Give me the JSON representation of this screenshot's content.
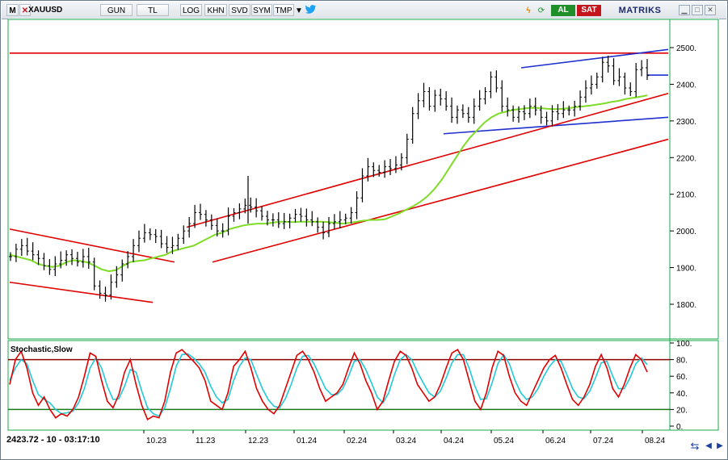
{
  "toolbar": {
    "menu_icon_label": "M",
    "symbol": "XAUUSD",
    "period": "GUN",
    "currency": "TL",
    "log": "LOG",
    "khn": "KHN",
    "svd": "SVD",
    "sym": "SYM",
    "tmp": "TMP",
    "buy_label": "AL",
    "sell_label": "SAT",
    "brand": "MATRIKS"
  },
  "colors": {
    "price_bar": "#000000",
    "moving_average": "#7fdc26",
    "trend_red": "#e00000",
    "trend_blue": "#1f2fd0",
    "stoch_k": "#e00000",
    "stoch_d": "#22c9d8",
    "overbought_line": "#8a0000",
    "oversold_line": "#1a7a1a",
    "buy_bg": "#1f8f2a",
    "sell_bg": "#c4141c",
    "frame": "#1aa84a"
  },
  "status": {
    "readout": "2423.72 - 10 - 03:17:10"
  },
  "chart_data": [
    {
      "type": "candlestick",
      "instrument": "XAUUSD",
      "y_ticks": [
        "2500.",
        "2400.",
        "2300.",
        "2200.",
        "2100.",
        "2000.",
        "1900.",
        "1800."
      ],
      "y_tick_values": [
        2500,
        2400,
        2300,
        2200,
        2100,
        2000,
        1900,
        1800
      ],
      "ylim": [
        1730,
        2510
      ],
      "x_ticks": [
        "10.23",
        "11.23",
        "12.23",
        "01.24",
        "02.24",
        "03.24",
        "04.24",
        "05.24",
        "06.24",
        "07.24",
        "08.24"
      ],
      "grid": false,
      "series": [
        {
          "values": [
            1930,
            1950,
            1960,
            1945,
            1935,
            1925,
            1905,
            1895,
            1910,
            1920,
            1935,
            1925,
            1915,
            1930,
            1915,
            1850,
            1830,
            1825,
            1860,
            1880,
            1910,
            1930,
            1960,
            1980,
            1995,
            1990,
            1985,
            1965,
            1955,
            1960,
            1980,
            2000,
            2020,
            2050,
            2045,
            2030,
            2015,
            2000,
            2000,
            2040,
            2050,
            2060,
            2070,
            2065,
            2055,
            2040,
            2030,
            2030,
            2020,
            2025,
            2035,
            2045,
            2040,
            2030,
            2025,
            2010,
            1995,
            2020,
            2025,
            2030,
            2035,
            2050,
            2090,
            2150,
            2175,
            2165,
            2160,
            2175,
            2170,
            2180,
            2200,
            2250,
            2320,
            2355,
            2380,
            2340,
            2370,
            2360,
            2340,
            2310,
            2330,
            2320,
            2310,
            2340,
            2360,
            2380,
            2420,
            2390,
            2340,
            2330,
            2310,
            2325,
            2320,
            2340,
            2330,
            2310,
            2300,
            2325,
            2320,
            2330,
            2330,
            2340,
            2365,
            2390,
            2400,
            2420,
            2460,
            2450,
            2410,
            2420,
            2390,
            2380,
            2440,
            2445,
            2423.72
          ]
        },
        {
          "values": [
            1935,
            1930,
            1925,
            1920,
            1910,
            1905,
            1902,
            1905,
            1915,
            1920,
            1918,
            1914,
            1905,
            1895,
            1890,
            1893,
            1905,
            1915,
            1918,
            1920,
            1925,
            1930,
            1935,
            1945,
            1950,
            1955,
            1960,
            1970,
            1980,
            1990,
            1995,
            2005,
            2010,
            2015,
            2018,
            2020,
            2020,
            2022,
            2025,
            2025,
            2024,
            2025,
            2025,
            2025,
            2025,
            2024,
            2022,
            2020,
            2022,
            2025,
            2028,
            2030,
            2030,
            2032,
            2040,
            2048,
            2058,
            2068,
            2080,
            2095,
            2115,
            2140,
            2170,
            2200,
            2230,
            2255,
            2275,
            2295,
            2310,
            2320,
            2325,
            2330,
            2332,
            2335,
            2336,
            2335,
            2333,
            2332,
            2333,
            2335,
            2338,
            2340,
            2342,
            2345,
            2348,
            2352,
            2355,
            2360,
            2363,
            2366,
            2370
          ]
        }
      ],
      "trendlines": [
        {
          "color": "red",
          "values": [
            2485,
            2485
          ]
        },
        {
          "color": "blue",
          "values": [
            2445,
            2495
          ]
        },
        {
          "color": "blue",
          "values": [
            2265,
            2310
          ]
        },
        {
          "color": "blue",
          "values": [
            2425,
            2425
          ]
        },
        {
          "color": "red",
          "values": [
            2005,
            1915
          ]
        },
        {
          "color": "red",
          "values": [
            1860,
            1805
          ]
        },
        {
          "color": "red",
          "values": [
            2010,
            2375
          ]
        },
        {
          "color": "red",
          "values": [
            1915,
            2250
          ]
        }
      ]
    },
    {
      "type": "line",
      "title": "Stochastic,Slow",
      "y_ticks": [
        "100.",
        "80.",
        "60.",
        "40.",
        "20.",
        "0."
      ],
      "y_tick_values": [
        100,
        80,
        60,
        40,
        20,
        0
      ],
      "ylim": [
        0,
        100
      ],
      "reference_lines": [
        80,
        20
      ],
      "series": [
        {
          "values": [
            50,
            80,
            90,
            70,
            40,
            25,
            35,
            20,
            10,
            15,
            12,
            20,
            35,
            60,
            88,
            84,
            55,
            30,
            22,
            38,
            65,
            80,
            50,
            25,
            8,
            12,
            10,
            30,
            65,
            88,
            92,
            85,
            78,
            70,
            55,
            30,
            25,
            20,
            40,
            72,
            80,
            90,
            70,
            45,
            30,
            20,
            15,
            25,
            45,
            65,
            85,
            90,
            80,
            65,
            45,
            30,
            35,
            40,
            50,
            70,
            88,
            75,
            55,
            40,
            20,
            30,
            55,
            78,
            90,
            85,
            70,
            50,
            40,
            30,
            35,
            50,
            70,
            88,
            92,
            80,
            55,
            30,
            20,
            40,
            70,
            90,
            85,
            60,
            40,
            30,
            25,
            40,
            55,
            70,
            80,
            85,
            70,
            50,
            32,
            25,
            35,
            50,
            72,
            86,
            70,
            45,
            35,
            50,
            70,
            86,
            80,
            65
          ]
        },
        {
          "values": [
            55,
            70,
            80,
            75,
            55,
            38,
            32,
            28,
            20,
            15,
            16,
            18,
            28,
            45,
            70,
            82,
            70,
            48,
            32,
            33,
            48,
            68,
            65,
            42,
            22,
            15,
            12,
            22,
            45,
            72,
            86,
            87,
            82,
            75,
            65,
            48,
            35,
            28,
            32,
            55,
            72,
            82,
            80,
            62,
            45,
            32,
            24,
            22,
            33,
            50,
            70,
            84,
            85,
            75,
            60,
            45,
            38,
            38,
            45,
            60,
            78,
            80,
            68,
            52,
            35,
            28,
            40,
            62,
            80,
            86,
            80,
            65,
            52,
            40,
            35,
            42,
            58,
            76,
            86,
            86,
            70,
            48,
            32,
            33,
            52,
            75,
            86,
            75,
            55,
            40,
            32,
            35,
            45,
            60,
            72,
            80,
            78,
            62,
            45,
            35,
            33,
            42,
            58,
            76,
            78,
            60,
            45,
            45,
            58,
            75,
            82,
            74
          ]
        }
      ]
    }
  ]
}
